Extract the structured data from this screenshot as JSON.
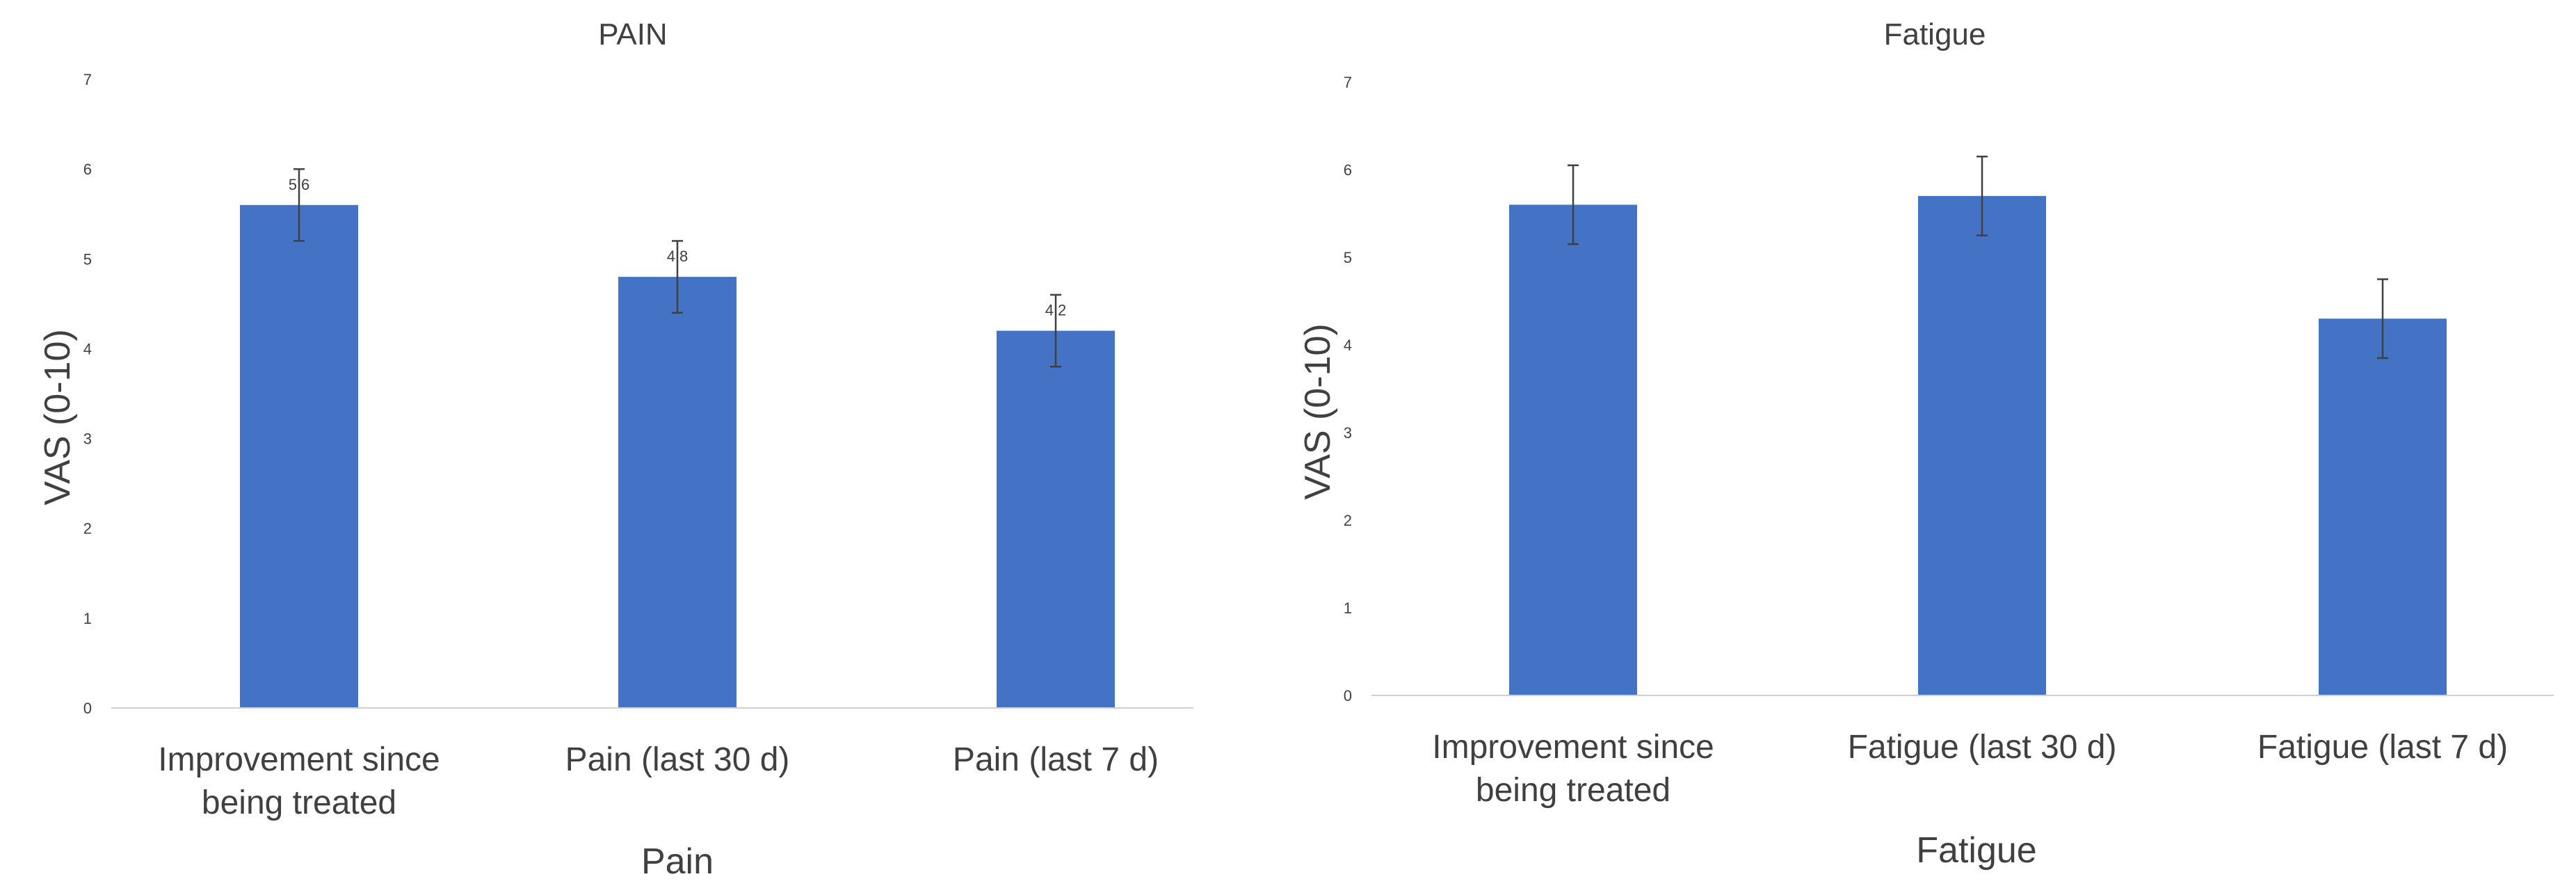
{
  "chart_data": [
    {
      "type": "bar",
      "title": "PAIN",
      "xlabel": "Pain",
      "ylabel": "VAS (0-10)",
      "ylim": [
        0,
        7
      ],
      "yticks": [
        "0",
        "1",
        "2",
        "3",
        "4",
        "5",
        "6",
        "7"
      ],
      "categories": [
        [
          "Improvement since",
          "being treated"
        ],
        [
          "Pain (last 30 d)"
        ],
        [
          "Pain (last 7 d)"
        ]
      ],
      "values": [
        5.6,
        4.8,
        4.2
      ],
      "data_labels": [
        "5.6",
        "4.8",
        "4.2"
      ],
      "error": [
        0.4,
        0.4,
        0.4
      ],
      "bar_color": "#4472C4"
    },
    {
      "type": "bar",
      "title": "Fatigue",
      "xlabel": "Fatigue",
      "ylabel": "VAS (0-10)",
      "ylim": [
        0,
        7
      ],
      "yticks": [
        "0",
        "1",
        "2",
        "3",
        "4",
        "5",
        "6",
        "7"
      ],
      "categories": [
        [
          "Improvement since",
          "being treated"
        ],
        [
          "Fatigue (last 30 d)"
        ],
        [
          "Fatigue (last 7 d)"
        ]
      ],
      "values": [
        5.6,
        5.7,
        4.3
      ],
      "data_labels": [],
      "error": [
        0.45,
        0.45,
        0.45
      ],
      "bar_color": "#4472C4"
    }
  ]
}
